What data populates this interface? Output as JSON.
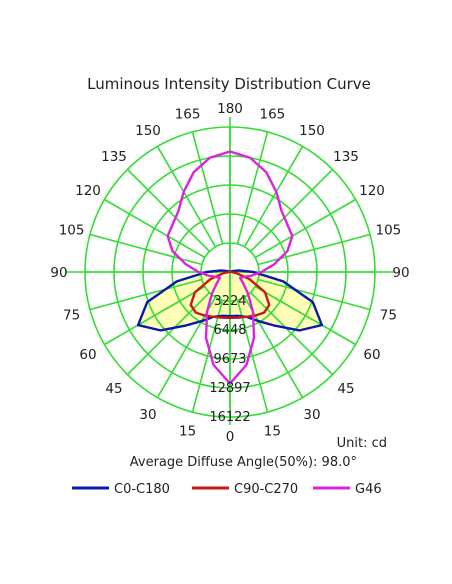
{
  "chart_data": {
    "type": "polar",
    "title": "Luminous Intensity Distribution Curve",
    "unit_label": "Unit: cd",
    "info_label": "Average Diffuse Angle(50%): 98.0°",
    "rmax": 16122,
    "ring_values": [
      3224,
      6448,
      9673,
      12897,
      16122
    ],
    "angle_tick_labels": [
      "180",
      "165",
      "150",
      "135",
      "120",
      "105",
      "90",
      "75",
      "60",
      "45",
      "30",
      "15",
      "0"
    ],
    "grid": true,
    "grid_color": "#33dd33",
    "fill_color": "#ffffb0",
    "legend_position": "bottom",
    "series": [
      {
        "name": "C0-C180",
        "color": "#0a1aa8",
        "angles": [
          0,
          10,
          20,
          30,
          40,
          50,
          60,
          70,
          80,
          90,
          100,
          110,
          120,
          130,
          140,
          150,
          160,
          170,
          180
        ],
        "values": [
          4900,
          4950,
          5300,
          6300,
          7800,
          10100,
          11800,
          9800,
          6000,
          2600,
          1000,
          300,
          100,
          50,
          30,
          20,
          15,
          10,
          5
        ]
      },
      {
        "name": "C90-C270",
        "color": "#c81818",
        "angles": [
          0,
          10,
          20,
          30,
          40,
          50,
          60,
          70,
          80,
          90,
          100,
          110,
          120,
          130,
          140,
          150,
          160,
          170,
          180
        ],
        "values": [
          5100,
          5150,
          5300,
          5600,
          5900,
          5700,
          4500,
          2300,
          700,
          100,
          50,
          20,
          10,
          5,
          5,
          5,
          5,
          5,
          5
        ]
      },
      {
        "name": "G46",
        "color": "#dd22dd",
        "angles": [
          0,
          10,
          20,
          30,
          40,
          50,
          60,
          70,
          80,
          90,
          100,
          110,
          120,
          130,
          140,
          150,
          160,
          170,
          180
        ],
        "values": [
          12400,
          10500,
          7800,
          5100,
          3100,
          1900,
          1300,
          1600,
          2400,
          3500,
          5000,
          6800,
          8000,
          8300,
          8900,
          10300,
          11800,
          12900,
          13400
        ]
      }
    ]
  }
}
